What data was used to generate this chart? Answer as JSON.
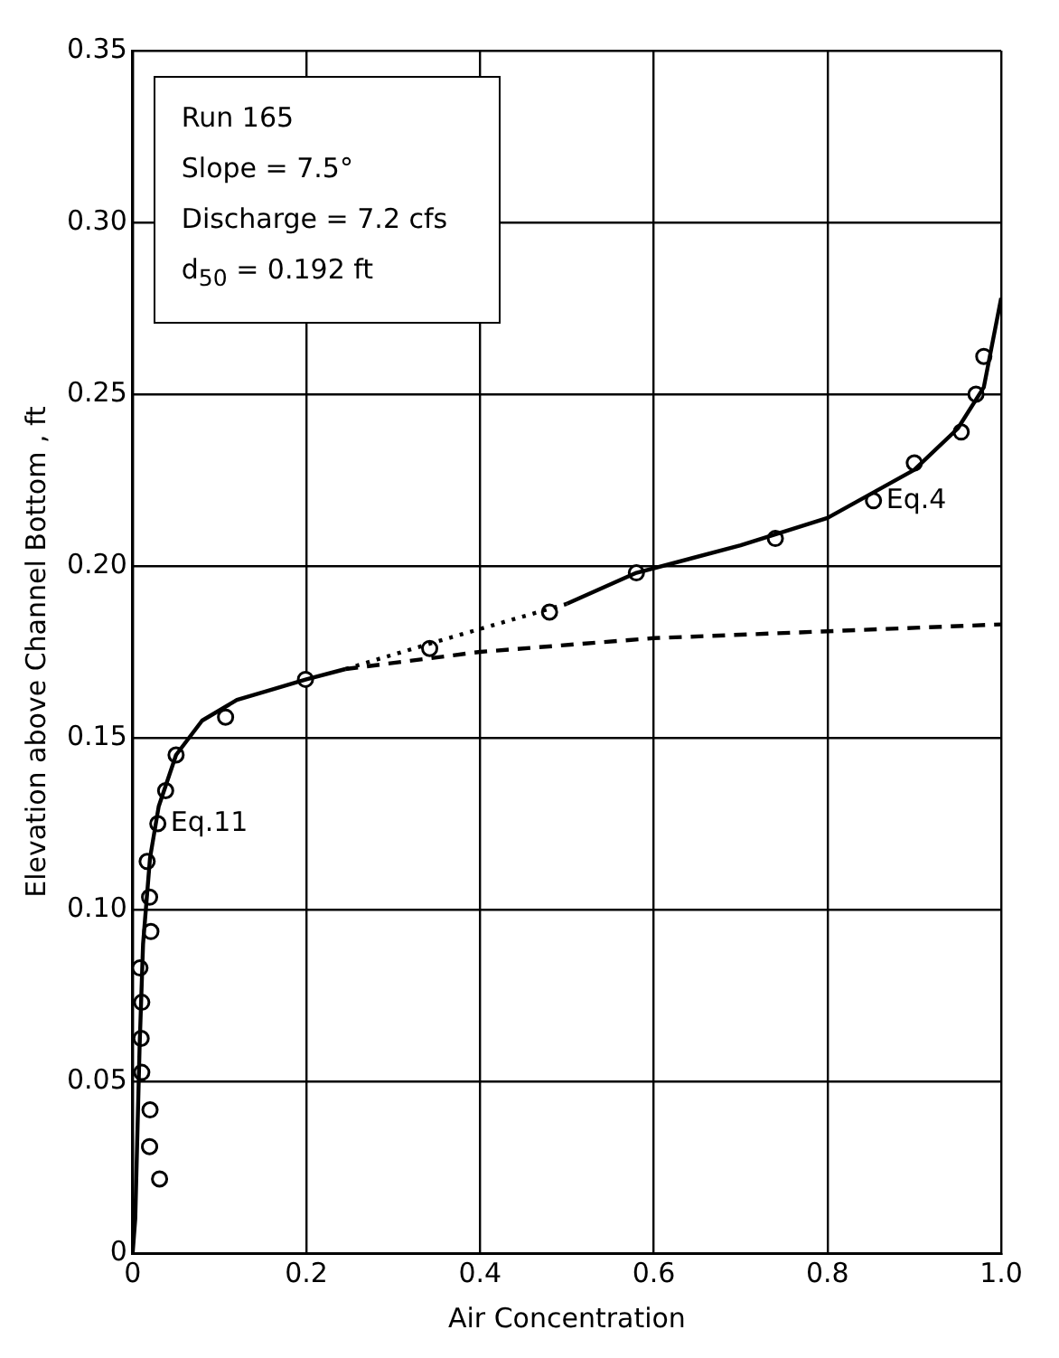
{
  "chart_data": {
    "type": "scatter",
    "xlabel": "Air Concentration",
    "ylabel": "Elevation above Channel Bottom , ft",
    "annotations": [
      "Run 165",
      "Slope = 7.5°",
      "Discharge = 7.2 cfs",
      "d$_{50}$ = 0.192 ft",
      {
        "text": "Eq.11",
        "x": 0.029,
        "y": 0.125
      },
      {
        "text": "Eq.4",
        "x": 0.853,
        "y": 0.219
      }
    ],
    "xlim": [
      0,
      1.0
    ],
    "xticks": [
      0,
      0.2,
      0.4,
      0.6,
      0.8,
      {
        "value": 1.0,
        "label": "1.0"
      }
    ],
    "ylim": [
      0,
      0.35
    ],
    "yticks": [
      0,
      0.05,
      {
        "value": 0.1,
        "label": "0.10"
      },
      0.15,
      {
        "value": 0.2,
        "label": "0.20"
      },
      0.25,
      {
        "value": 0.3,
        "label": "0.30"
      },
      0.35
    ],
    "grid": true,
    "legend": false,
    "series": [
      {
        "type": "line",
        "color": "#000000",
        "marker": "none",
        "line_style": "solid",
        "x": [
          0,
          0.003,
          0.005,
          0.008,
          0.012,
          0.02,
          0.03,
          0.05,
          0.08,
          0.12,
          0.2,
          0.245
        ],
        "values": [
          0,
          0.01,
          0.03,
          0.06,
          0.09,
          0.115,
          0.13,
          0.145,
          0.155,
          0.161,
          0.167,
          0.17
        ]
      },
      {
        "type": "line",
        "color": "#000000",
        "marker": "none",
        "line_style": "dashed",
        "x": [
          0.245,
          0.4,
          0.6,
          0.8,
          1.0
        ],
        "values": [
          0.17,
          0.175,
          0.179,
          0.181,
          0.183
        ]
      },
      {
        "type": "line",
        "color": "#000000",
        "marker": "none",
        "line_style": "dotted",
        "x": [
          0.245,
          0.35,
          0.5
        ],
        "values": [
          0.17,
          0.178,
          0.189
        ]
      },
      {
        "type": "line",
        "color": "#000000",
        "marker": "none",
        "line_style": "solid",
        "x": [
          0.5,
          0.58,
          0.7,
          0.8,
          0.9,
          0.95,
          0.98,
          1.0
        ],
        "values": [
          0.189,
          0.198,
          0.206,
          0.214,
          0.228,
          0.24,
          0.252,
          0.278
        ]
      },
      {
        "type": "scatter",
        "color": "#000000",
        "marker": "circle",
        "x": [
          0.031,
          0.0195,
          0.02,
          0.0105,
          0.0098,
          0.0105,
          0.0084,
          0.021,
          0.0195,
          0.0167,
          0.029,
          0.038,
          0.05,
          0.107,
          0.199,
          0.342,
          0.48,
          0.58,
          0.74,
          0.853,
          0.9,
          0.954,
          0.971,
          0.98
        ],
        "values": [
          0.0216,
          0.031,
          0.0417,
          0.0526,
          0.0625,
          0.073,
          0.083,
          0.0936,
          0.1036,
          0.114,
          0.125,
          0.1346,
          0.145,
          0.156,
          0.167,
          0.176,
          0.1866,
          0.198,
          0.208,
          0.219,
          0.23,
          0.239,
          0.25,
          0.261
        ]
      }
    ]
  }
}
